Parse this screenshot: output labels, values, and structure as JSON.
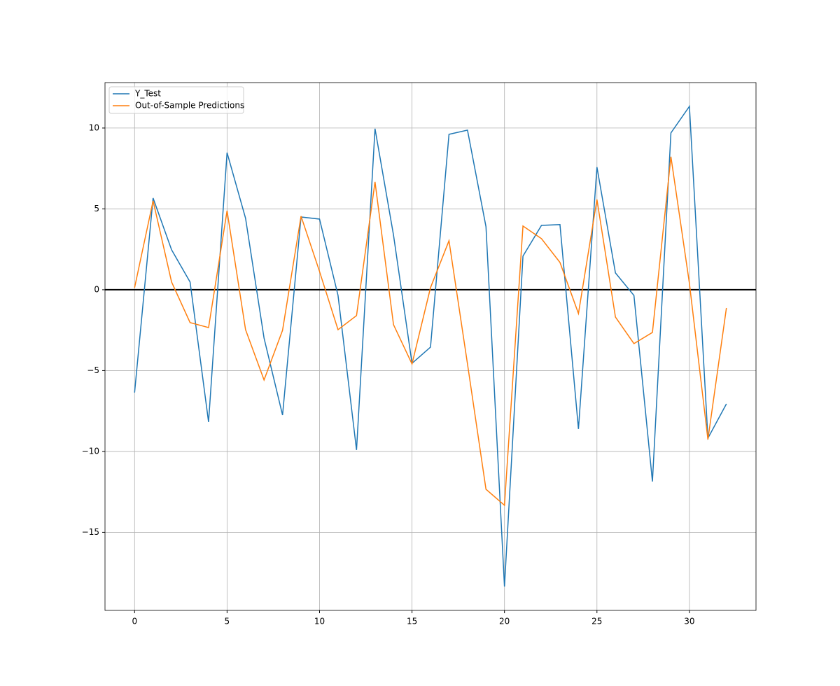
{
  "chart_data": {
    "type": "line",
    "x": [
      0,
      1,
      2,
      3,
      4,
      5,
      6,
      7,
      8,
      9,
      10,
      11,
      12,
      13,
      14,
      15,
      16,
      17,
      18,
      19,
      20,
      21,
      22,
      23,
      24,
      25,
      26,
      27,
      28,
      29,
      30,
      31,
      32
    ],
    "series": [
      {
        "name": "Y_Test",
        "color": "#1f77b4",
        "values": [
          -6.36,
          5.67,
          2.47,
          0.48,
          -8.18,
          8.48,
          4.42,
          -2.99,
          -7.75,
          4.5,
          4.37,
          -0.35,
          -9.91,
          9.96,
          3.38,
          -4.55,
          -3.55,
          9.61,
          9.87,
          3.9,
          -18.35,
          2.08,
          3.98,
          4.03,
          -8.61,
          7.58,
          1.04,
          -0.35,
          -11.86,
          9.7,
          11.34,
          -9.18,
          -7.06
        ]
      },
      {
        "name": "Out-of-Sample Predictions",
        "color": "#ff7f0e",
        "values": [
          0.13,
          5.5,
          0.48,
          -2.03,
          -2.34,
          4.89,
          -2.47,
          -5.58,
          -2.51,
          4.55,
          1.13,
          -2.47,
          -1.6,
          6.67,
          -2.16,
          -4.59,
          0.13,
          3.03,
          -4.59,
          -12.34,
          -13.33,
          3.94,
          3.16,
          1.69,
          -1.47,
          5.58,
          -1.69,
          -3.33,
          -2.64,
          8.23,
          0.39,
          -9.26,
          -1.13
        ]
      }
    ],
    "xlim": [
      -1.6,
      33.6
    ],
    "ylim": [
      -19.83,
      12.81
    ],
    "xticks": [
      0,
      5,
      10,
      15,
      20,
      25,
      30
    ],
    "yticks": [
      {
        "value": -15,
        "label": "−15"
      },
      {
        "value": -10,
        "label": "−10"
      },
      {
        "value": -5,
        "label": "−5"
      },
      0,
      5,
      10
    ],
    "hline": 0,
    "hline_color": "#000000",
    "grid": true,
    "legend": "upper left"
  }
}
